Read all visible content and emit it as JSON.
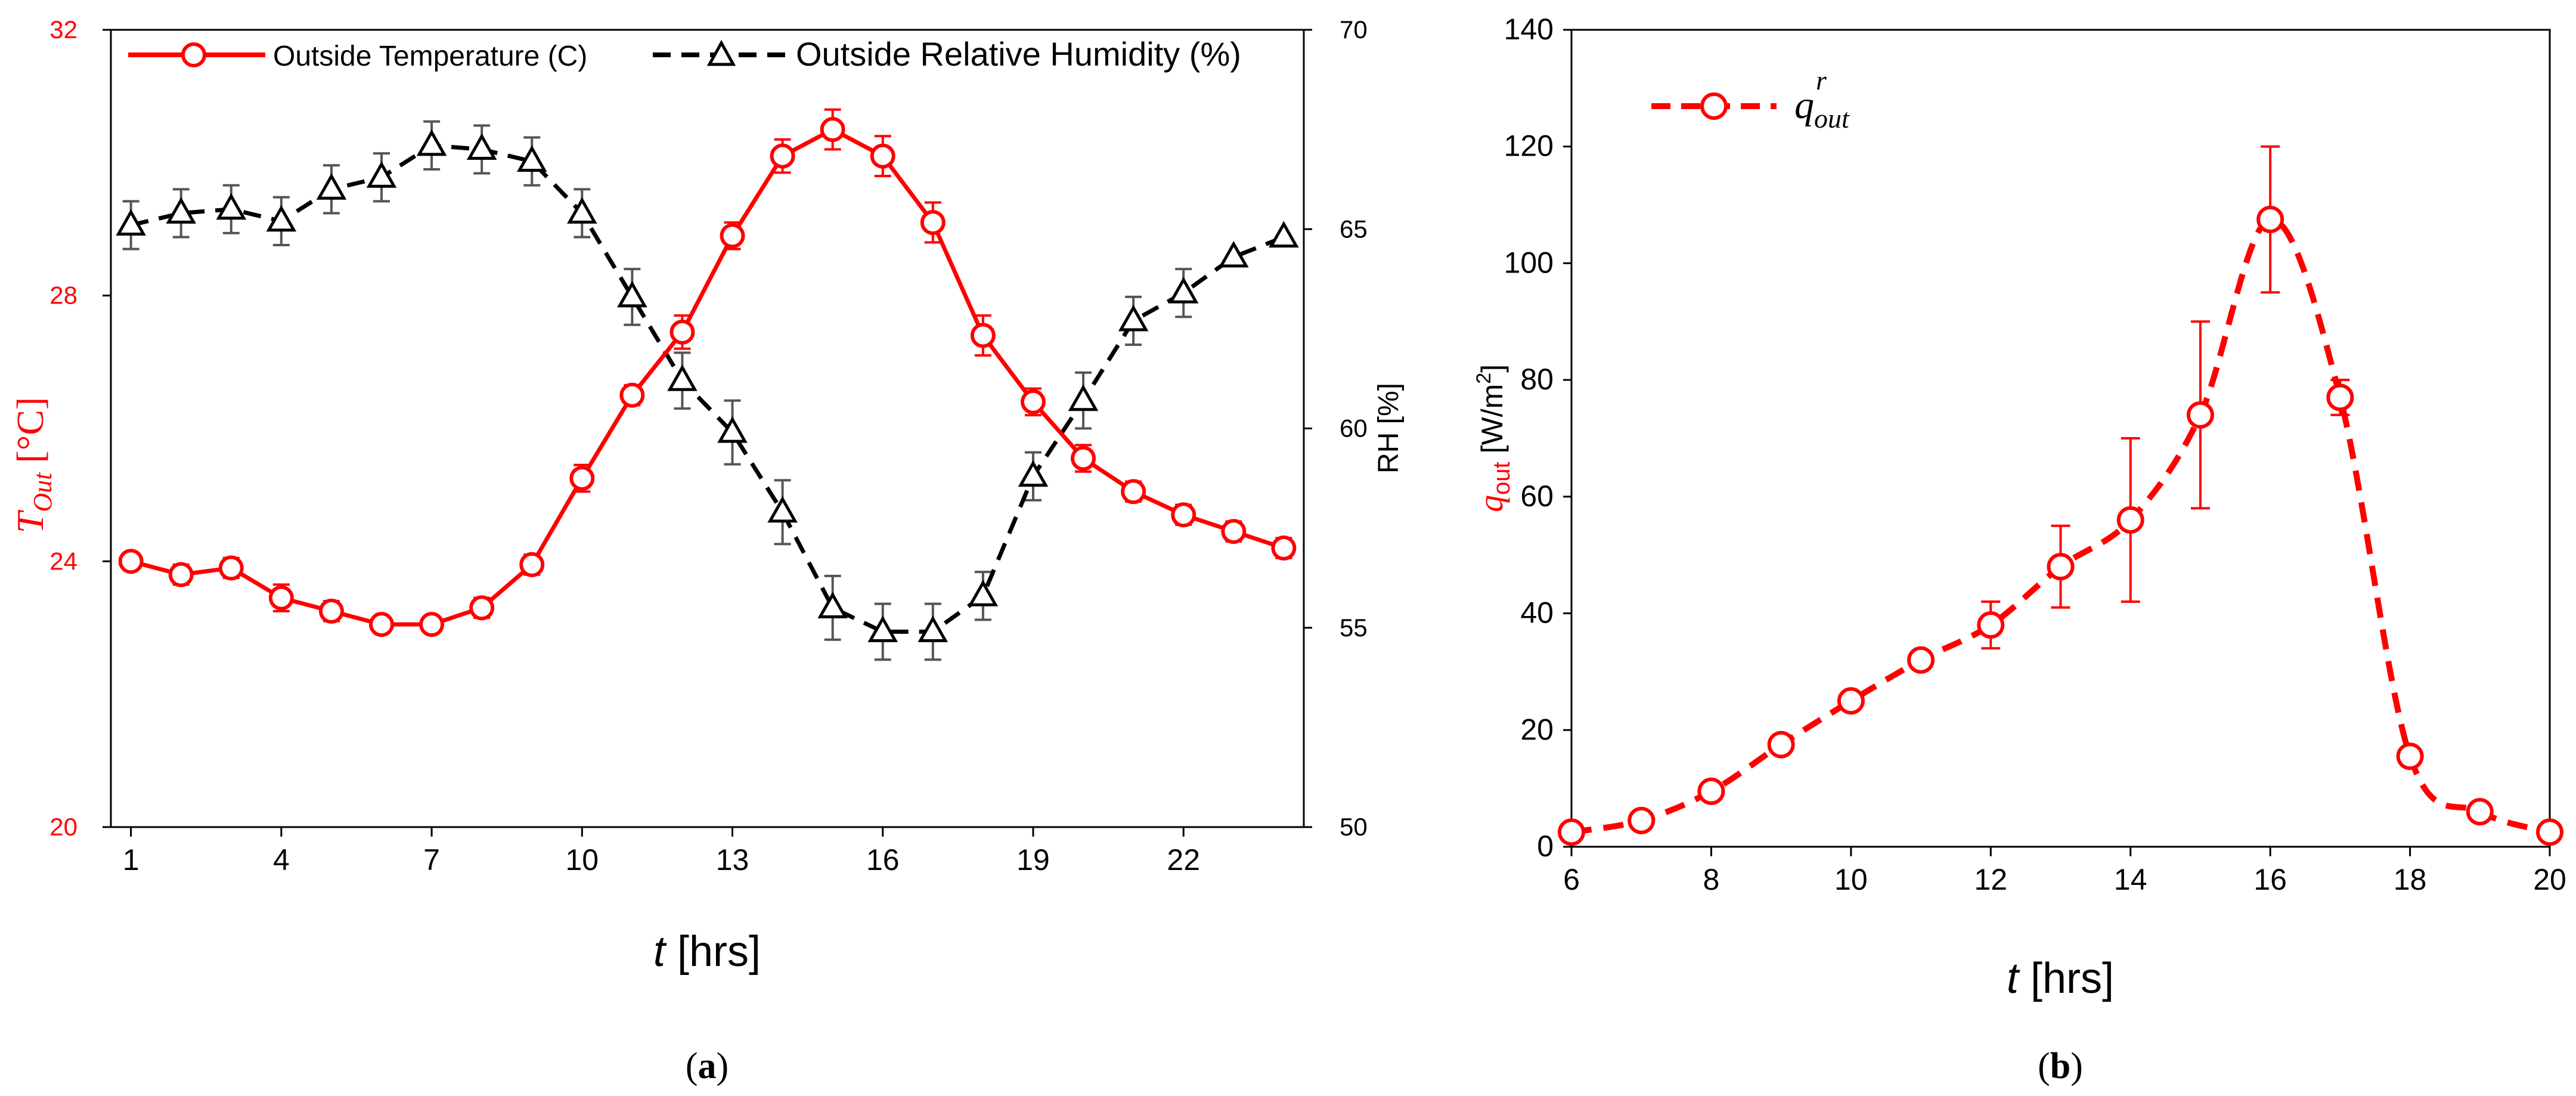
{
  "chart_data": [
    {
      "type": "line",
      "panel_label": "(a)",
      "panel_letter": "a",
      "x": [
        1,
        2,
        3,
        4,
        5,
        6,
        7,
        8,
        9,
        10,
        11,
        12,
        13,
        14,
        15,
        16,
        17,
        18,
        19,
        20,
        21,
        22,
        23,
        24
      ],
      "x_ticks": [
        1,
        4,
        7,
        10,
        13,
        16,
        19,
        22
      ],
      "x_tick_labels": [
        "1",
        "4",
        "7",
        "10",
        "13",
        "16",
        "19",
        "22"
      ],
      "xlim": [
        0.6,
        24.4
      ],
      "xlabel_italic": "t",
      "xlabel_rest": " [hrs]",
      "ylabel_left_main": "T",
      "ylabel_left_sub": "Out",
      "ylabel_left_units": " [°C]",
      "ylim_left": [
        20,
        32
      ],
      "y_left_ticks": [
        20,
        24,
        28,
        32
      ],
      "y_left_tick_labels": [
        "20",
        "24",
        "28",
        "32"
      ],
      "ylabel_right": "RH [%]",
      "ylim_right": [
        50,
        70
      ],
      "y_right_ticks": [
        50,
        55,
        60,
        65,
        70
      ],
      "y_right_tick_labels": [
        "50",
        "55",
        "60",
        "65",
        "70"
      ],
      "grid": false,
      "legend_position": "top",
      "series": [
        {
          "name": "Outside Temperature (C)",
          "axis": "left",
          "color": "#ff0000",
          "line": "solid",
          "marker": "circle",
          "values": [
            24.0,
            23.8,
            23.9,
            23.45,
            23.25,
            23.05,
            23.05,
            23.3,
            23.95,
            25.25,
            26.5,
            27.45,
            28.9,
            30.1,
            30.5,
            30.1,
            29.1,
            27.4,
            26.4,
            25.55,
            25.05,
            24.7,
            24.45,
            24.2
          ],
          "errors": [
            0.1,
            0.15,
            0.15,
            0.2,
            0.15,
            0.1,
            0.1,
            0.15,
            0.15,
            0.2,
            0.15,
            0.25,
            0.2,
            0.25,
            0.3,
            0.3,
            0.3,
            0.3,
            0.2,
            0.2,
            0.15,
            0.15,
            0.15,
            0.15
          ]
        },
        {
          "name": "Outside Relative Humidity (%)",
          "axis": "right",
          "color": "#000000",
          "line": "dashed",
          "marker": "triangle",
          "values": [
            65.1,
            65.4,
            65.5,
            65.2,
            66.0,
            66.3,
            67.1,
            67.0,
            66.7,
            65.4,
            63.3,
            61.2,
            59.9,
            57.9,
            55.5,
            54.9,
            54.9,
            55.8,
            58.8,
            60.7,
            62.7,
            63.4,
            64.3,
            64.8
          ],
          "errors": [
            0.6,
            0.6,
            0.6,
            0.6,
            0.6,
            0.6,
            0.6,
            0.6,
            0.6,
            0.6,
            0.7,
            0.7,
            0.8,
            0.8,
            0.8,
            0.7,
            0.7,
            0.6,
            0.6,
            0.7,
            0.6,
            0.6,
            0.0,
            0.0
          ]
        }
      ]
    },
    {
      "type": "line",
      "panel_label": "(b)",
      "panel_letter": "b",
      "x": [
        6,
        7,
        8,
        9,
        10,
        11,
        12,
        13,
        14,
        15,
        16,
        17,
        18,
        19,
        20
      ],
      "x_ticks": [
        6,
        8,
        10,
        12,
        14,
        16,
        18,
        20
      ],
      "x_tick_labels": [
        "6",
        "8",
        "10",
        "12",
        "14",
        "16",
        "18",
        "20"
      ],
      "xlim": [
        6,
        20
      ],
      "xlabel_italic": "t",
      "xlabel_rest": " [hrs]",
      "ylabel_main": "q",
      "ylabel_sub": "out",
      "ylabel_units_pre": " [W/m",
      "ylabel_units_sup": "2",
      "ylabel_units_post": "]",
      "ylim": [
        0,
        140
      ],
      "y_ticks": [
        0,
        20,
        40,
        60,
        80,
        100,
        120,
        140
      ],
      "y_tick_labels": [
        "0",
        "20",
        "40",
        "60",
        "80",
        "100",
        "120",
        "140"
      ],
      "grid": false,
      "legend_position": "top-left",
      "series": [
        {
          "name_main": "q",
          "name_sub": "out",
          "name_sup": "r",
          "color": "#ff0000",
          "line": "dashed-smooth",
          "marker": "circle",
          "values": [
            2.5,
            4.5,
            9.5,
            17.5,
            25.0,
            32.0,
            38.0,
            48.0,
            56.0,
            74.0,
            107.5,
            77.0,
            15.5,
            6.0,
            2.5
          ],
          "errors": [
            0,
            0,
            0,
            0,
            0,
            1.5,
            4.0,
            7.0,
            14.0,
            16.0,
            12.5,
            3.0,
            0,
            0,
            0
          ]
        }
      ]
    }
  ]
}
